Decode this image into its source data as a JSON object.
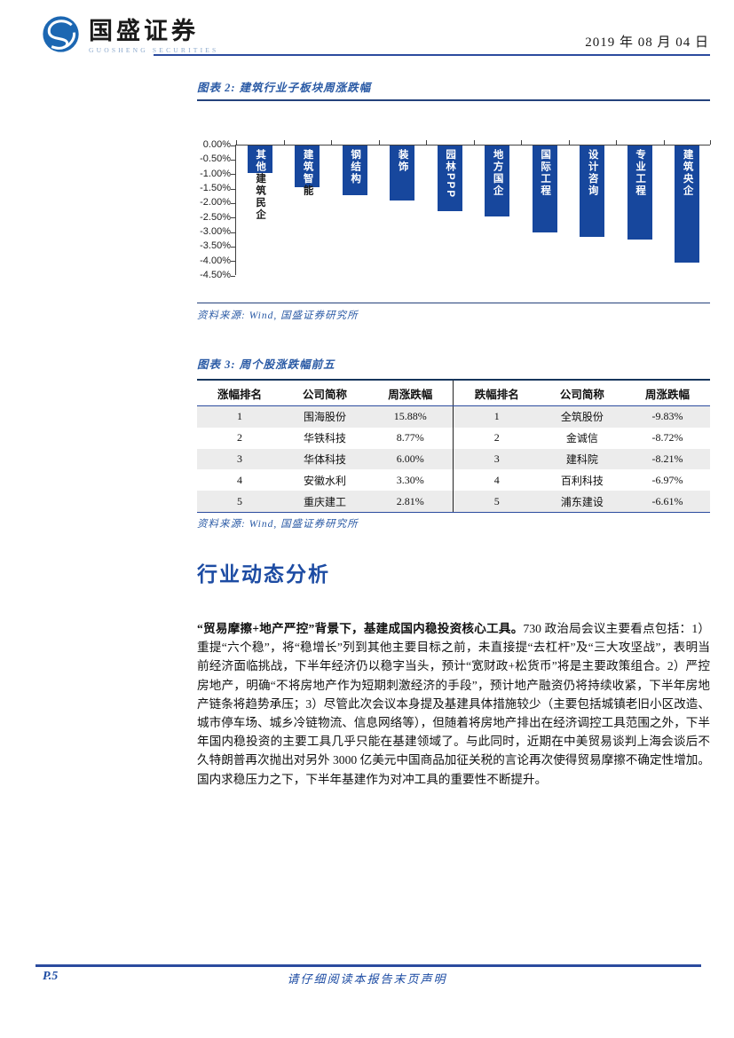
{
  "header": {
    "brand_cn": "国盛证券",
    "brand_en": "GUOSHENG SECURITIES",
    "date": "2019 年 08 月 04 日"
  },
  "colors": {
    "accent_blue": "#2b4b9e",
    "title_blue": "#2a5aa5",
    "bar_blue": "#17479d",
    "table_border_dark": "#17365d",
    "row_shade": "#ececec"
  },
  "figure2": {
    "title": "图表 2: 建筑行业子板块周涨跌幅",
    "source": "资料来源: Wind, 国盛证券研究所"
  },
  "chart_data": {
    "type": "bar",
    "title": "建筑行业子板块周涨跌幅",
    "categories": [
      "其他建筑民企",
      "建筑智能",
      "钢结构",
      "装饰",
      "园林PPP",
      "地方国企",
      "国际工程",
      "设计咨询",
      "专业工程",
      "建筑央企"
    ],
    "values": [
      -0.95,
      -1.45,
      -1.7,
      -1.9,
      -2.25,
      -2.45,
      -3.0,
      -3.15,
      -3.25,
      -4.05
    ],
    "label_splits": [
      {
        "inside": "其他",
        "below": "建筑民企"
      },
      {
        "inside": "建筑智",
        "below": "能"
      },
      {
        "inside": "钢结构",
        "below": ""
      },
      {
        "inside": "装饰",
        "below": ""
      },
      {
        "inside": "园林PPP",
        "below": ""
      },
      {
        "inside": "地方国企",
        "below": ""
      },
      {
        "inside": "国际工程",
        "below": ""
      },
      {
        "inside": "设计咨询",
        "below": ""
      },
      {
        "inside": "专业工程",
        "below": ""
      },
      {
        "inside": "建筑央企",
        "below": ""
      }
    ],
    "xlabel": "",
    "ylabel": "",
    "ylim": [
      -4.5,
      0
    ],
    "yticks": [
      "0.00%",
      "-0.50%",
      "-1.00%",
      "-1.50%",
      "-2.00%",
      "-2.50%",
      "-3.00%",
      "-3.50%",
      "-4.00%",
      "-4.50%"
    ],
    "grid": false,
    "legend": false,
    "bar_color": "#17479d"
  },
  "figure3": {
    "title": "图表 3: 周个股涨跌幅前五",
    "source": "资料来源: Wind, 国盛证券研究所",
    "table": {
      "headers": [
        "涨幅排名",
        "公司简称",
        "周涨跌幅",
        "跌幅排名",
        "公司简称",
        "周涨跌幅"
      ],
      "rows": [
        [
          "1",
          "围海股份",
          "15.88%",
          "1",
          "全筑股份",
          "-9.83%"
        ],
        [
          "2",
          "华铁科技",
          "8.77%",
          "2",
          "金诚信",
          "-8.72%"
        ],
        [
          "3",
          "华体科技",
          "6.00%",
          "3",
          "建科院",
          "-8.21%"
        ],
        [
          "4",
          "安徽水利",
          "3.30%",
          "4",
          "百利科技",
          "-6.97%"
        ],
        [
          "5",
          "重庆建工",
          "2.81%",
          "5",
          "浦东建设",
          "-6.61%"
        ]
      ]
    }
  },
  "section": {
    "heading": "行业动态分析",
    "lead_bold": "“贸易摩擦+地产严控”背景下，基建成国内稳投资核心工具。",
    "body": "730 政治局会议主要看点包括：1）重提“六个稳”，将“稳增长”列到其他主要目标之前，未直接提“去杠杆”及“三大攻坚战”，表明当前经济面临挑战，下半年经济仍以稳字当头，预计“宽财政+松货币”将是主要政策组合。2）严控房地产，明确“不将房地产作为短期刺激经济的手段”，预计地产融资仍将持续收紧，下半年房地产链条将趋势承压；3）尽管此次会议本身提及基建具体措施较少（主要包括城镇老旧小区改造、城市停车场、城乡冷链物流、信息网络等），但随着将房地产排出在经济调控工具范围之外，下半年国内稳投资的主要工具几乎只能在基建领域了。与此同时，近期在中美贸易谈判上海会谈后不久特朗普再次抛出对另外 3000 亿美元中国商品加征关税的言论再次使得贸易摩擦不确定性增加。国内求稳压力之下，下半年基建作为对冲工具的重要性不断提升。"
  },
  "footer": {
    "page": "P.5",
    "disclaimer": "请仔细阅读本报告末页声明"
  }
}
